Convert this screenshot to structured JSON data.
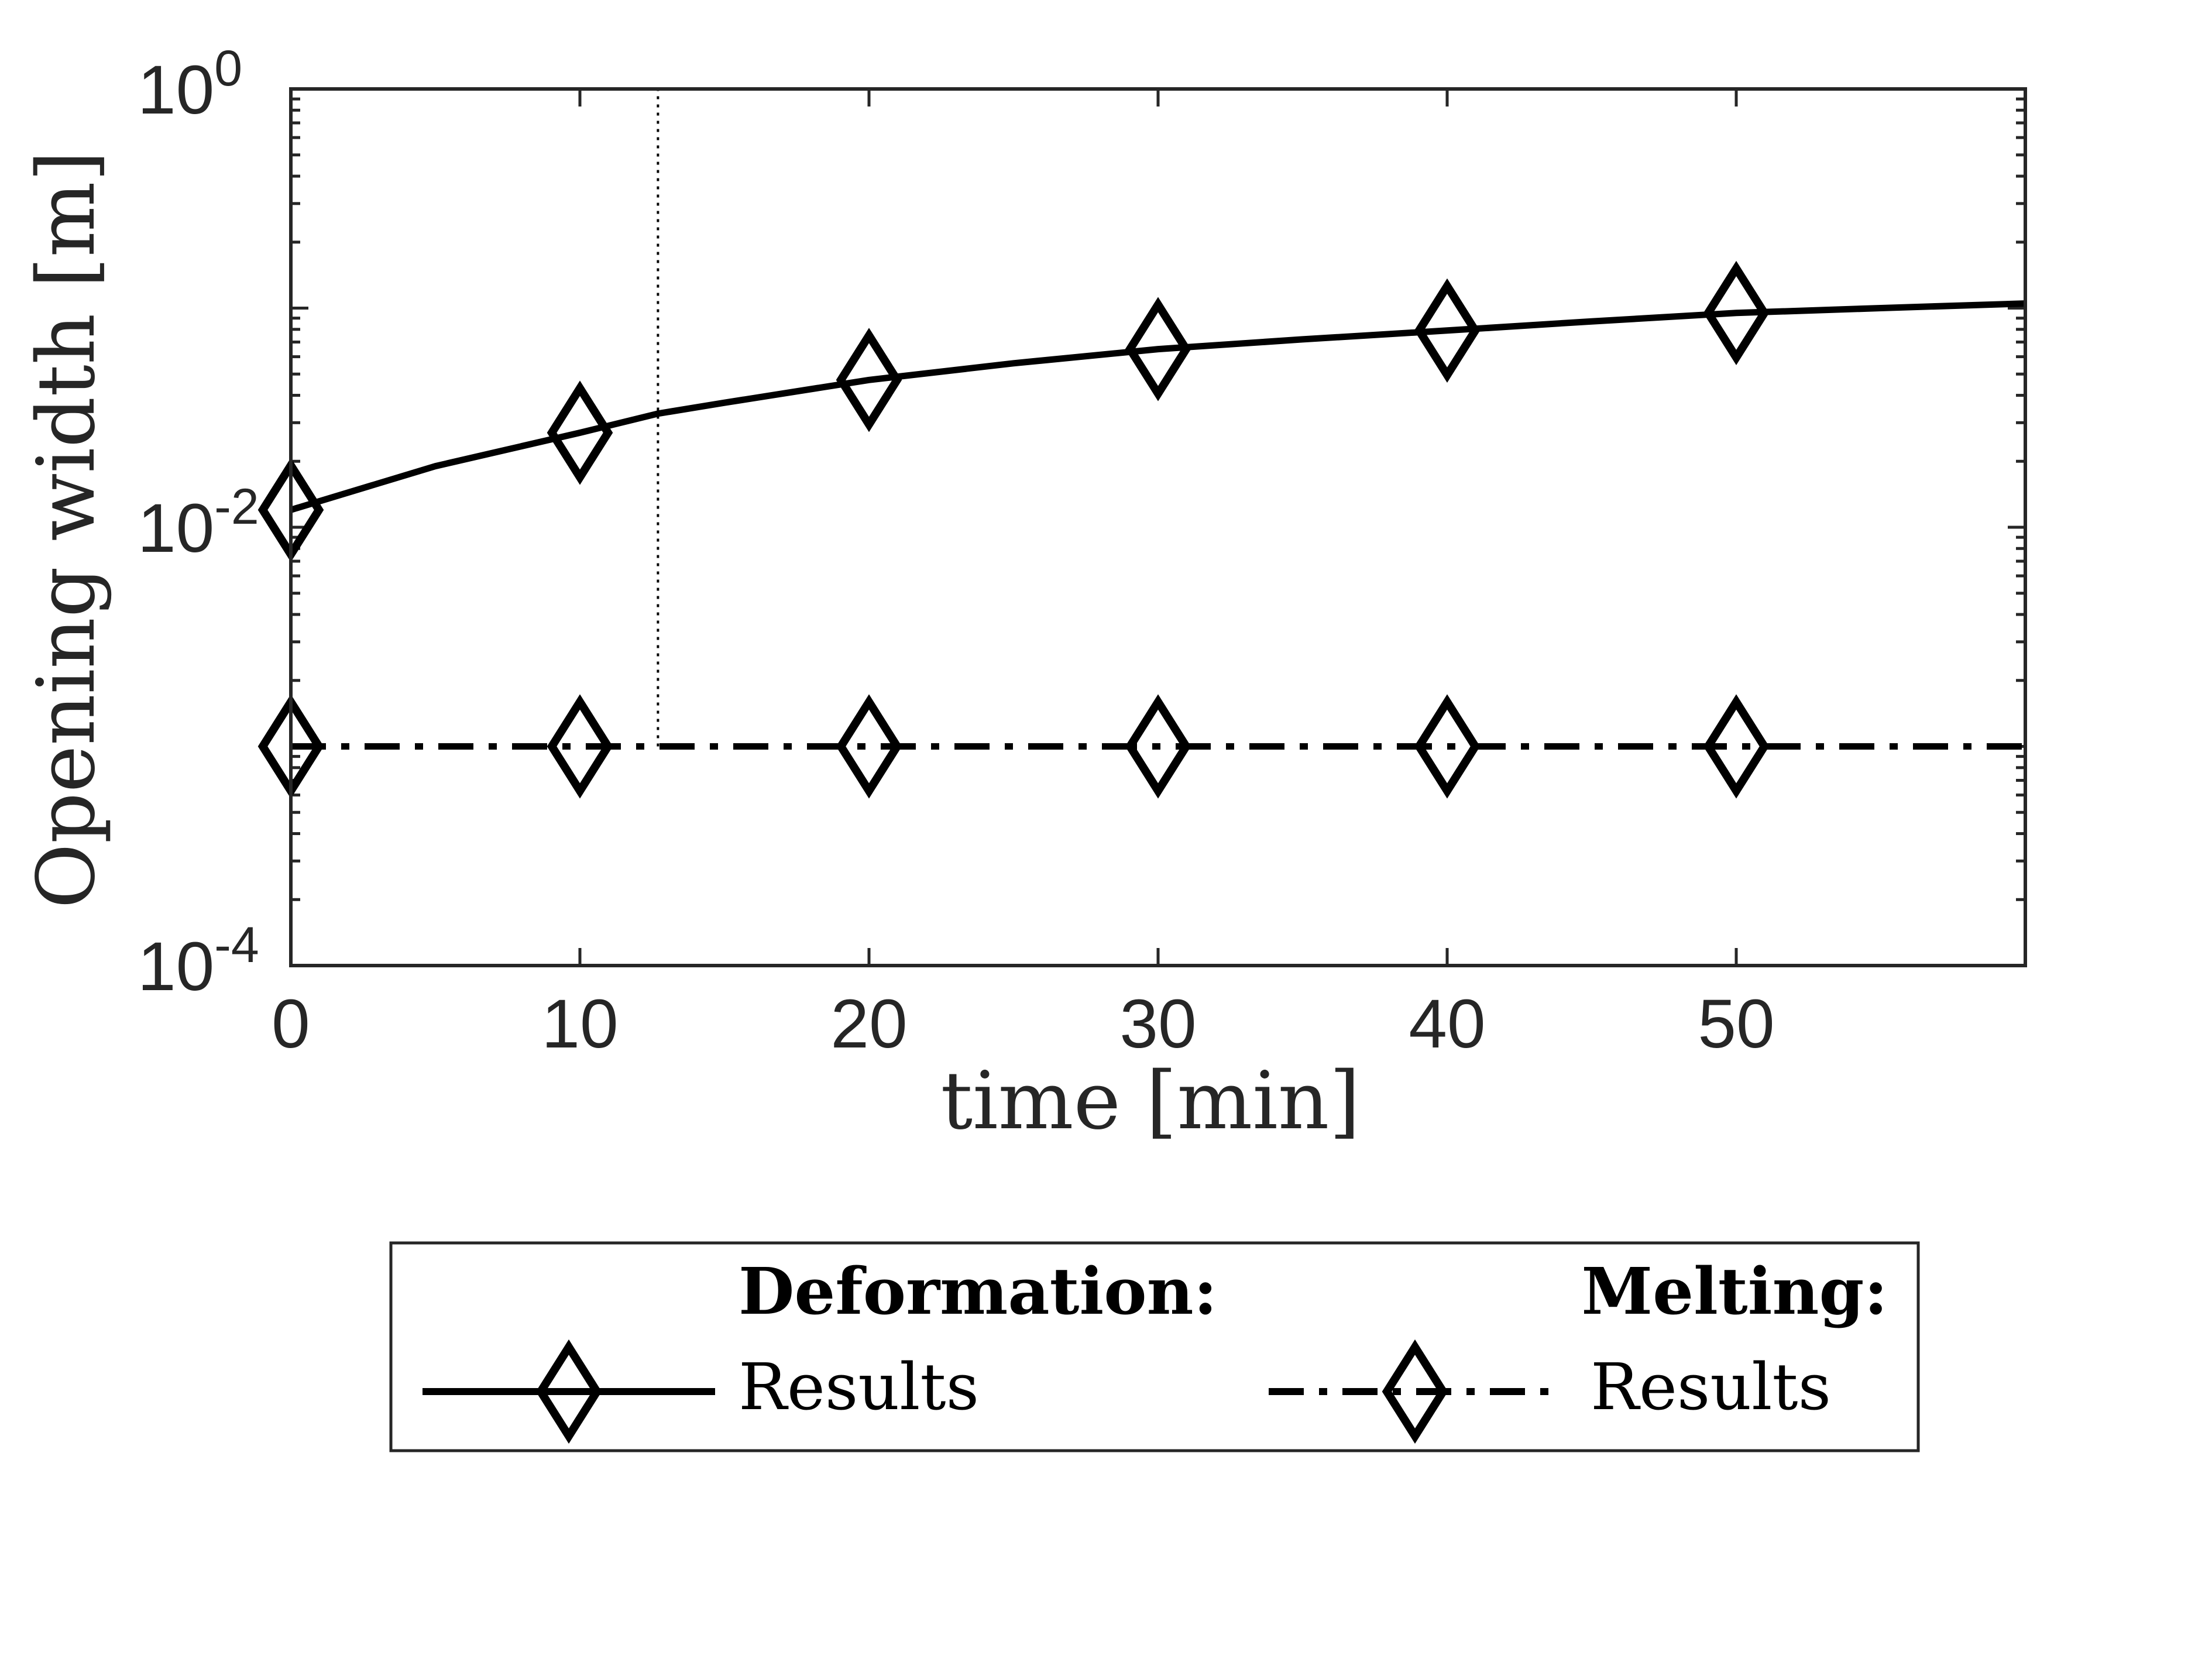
{
  "chart_data": {
    "type": "line",
    "xlabel": "time [min]",
    "ylabel": "Opening width [m]",
    "y_scale": "log",
    "xlim": [
      0,
      60
    ],
    "ylim": [
      0.0001,
      1
    ],
    "x_ticks": [
      0,
      10,
      20,
      30,
      40,
      50
    ],
    "x_tick_labels": [
      "0",
      "10",
      "20",
      "30",
      "40",
      "50"
    ],
    "y_ticks": [
      {
        "value": 0.0001,
        "base": "10",
        "exp": "-4"
      },
      {
        "value": 0.01,
        "base": "10",
        "exp": "-2"
      },
      {
        "value": 1,
        "base": "10",
        "exp": "0"
      }
    ],
    "grid": false,
    "legend_position": "bottom",
    "reference_line": {
      "x": 12.7,
      "y_from": 0.001,
      "y_to": 1,
      "style": "dotted"
    },
    "series": [
      {
        "name": "Results",
        "group": "Deformation:",
        "line_style": "solid",
        "marker": "diamond",
        "x": [
          0,
          5,
          10,
          12.7,
          15,
          20,
          25,
          30,
          35,
          40,
          45,
          50,
          55,
          60
        ],
        "y": [
          0.012,
          0.019,
          0.027,
          0.033,
          0.037,
          0.047,
          0.056,
          0.065,
          0.072,
          0.079,
          0.087,
          0.095,
          0.1,
          0.105
        ],
        "marker_x": [
          0,
          10,
          20,
          30,
          40,
          50
        ]
      },
      {
        "name": "Results",
        "group": "Melting:",
        "line_style": "dash-dot",
        "marker": "diamond",
        "x": [
          0,
          10,
          20,
          30,
          40,
          50,
          60
        ],
        "y": [
          0.001,
          0.001,
          0.001,
          0.001,
          0.001,
          0.001,
          0.001
        ],
        "marker_x": [
          0,
          10,
          20,
          30,
          40,
          50
        ]
      }
    ],
    "colors": {
      "line": "#000000",
      "axes": "#262626",
      "background": "#ffffff"
    }
  }
}
